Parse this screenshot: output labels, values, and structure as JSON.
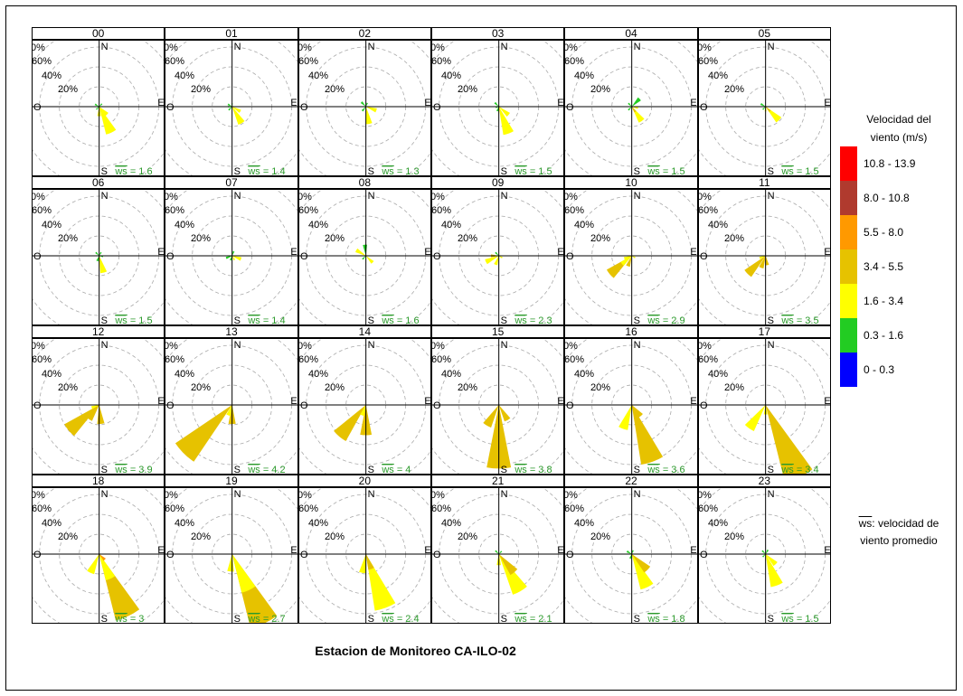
{
  "title": "Estacion de Monitoreo CA-ILO-02",
  "legend": {
    "title_line1": "Velocidad del",
    "title_line2": "viento (m/s)",
    "items": [
      {
        "label": "10.8 - 13.9",
        "color": "#ff0000"
      },
      {
        "label": "8.0 - 10.8",
        "color": "#b03a2e"
      },
      {
        "label": "5.5 - 8.0",
        "color": "#ff9900"
      },
      {
        "label": "3.4 - 5.5",
        "color": "#e6c200"
      },
      {
        "label": "1.6 - 3.4",
        "color": "#ffff00"
      },
      {
        "label": "0.3 - 1.6",
        "color": "#22cc22"
      },
      {
        "label": "0 - 0.3",
        "color": "#0000ff"
      }
    ],
    "ws_note_symbol": "ws",
    "ws_note_line1": ": velocidad de",
    "ws_note_line2": "viento promedio"
  },
  "chart_data": {
    "type": "wind-rose-grid",
    "title": "Estacion de Monitoreo CA-ILO-02",
    "radial_ticks": [
      "20%",
      "40%",
      "60%",
      "80%"
    ],
    "compass_labels": {
      "N": "N",
      "S": "S",
      "E": "E",
      "O": "O"
    },
    "ws_label": "ws",
    "panels": [
      {
        "hour": "00",
        "ws": "1.6",
        "petals": [
          {
            "dir": 155,
            "len": 0.36,
            "c": "#ffff00"
          },
          {
            "dir": 135,
            "len": 0.14,
            "c": "#ffff00"
          },
          {
            "dir": 180,
            "len": 0.12,
            "c": "#ffff00"
          },
          {
            "dir": 300,
            "len": 0.06,
            "c": "#22cc22"
          },
          {
            "dir": 45,
            "len": 0.05,
            "c": "#22cc22"
          },
          {
            "dir": 225,
            "len": 0.05,
            "c": "#22cc22"
          },
          {
            "dir": 90,
            "len": 0.04,
            "c": "#22cc22"
          }
        ]
      },
      {
        "hour": "01",
        "ws": "1.4",
        "petals": [
          {
            "dir": 150,
            "len": 0.24,
            "c": "#ffff00"
          },
          {
            "dir": 120,
            "len": 0.12,
            "c": "#ffff00"
          },
          {
            "dir": 300,
            "len": 0.06,
            "c": "#22cc22"
          },
          {
            "dir": 225,
            "len": 0.06,
            "c": "#22cc22"
          },
          {
            "dir": 0,
            "len": 0.04,
            "c": "#22cc22"
          },
          {
            "dir": 270,
            "len": 0.05,
            "c": "#22cc22"
          }
        ]
      },
      {
        "hour": "02",
        "ws": "1.3",
        "petals": [
          {
            "dir": 170,
            "len": 0.22,
            "c": "#ffff00"
          },
          {
            "dir": 110,
            "len": 0.14,
            "c": "#ffff00"
          },
          {
            "dir": 315,
            "len": 0.08,
            "c": "#22cc22"
          },
          {
            "dir": 220,
            "len": 0.07,
            "c": "#22cc22"
          },
          {
            "dir": 20,
            "len": 0.05,
            "c": "#22cc22"
          }
        ]
      },
      {
        "hour": "03",
        "ws": "1.5",
        "petals": [
          {
            "dir": 160,
            "len": 0.36,
            "c": "#ffff00"
          },
          {
            "dir": 130,
            "len": 0.16,
            "c": "#ffff00"
          },
          {
            "dir": 315,
            "len": 0.07,
            "c": "#22cc22"
          },
          {
            "dir": 200,
            "len": 0.06,
            "c": "#22cc22"
          },
          {
            "dir": 250,
            "len": 0.04,
            "c": "#22cc22"
          }
        ]
      },
      {
        "hour": "04",
        "ws": "1.5",
        "petals": [
          {
            "dir": 145,
            "len": 0.22,
            "c": "#ffff00"
          },
          {
            "dir": 145,
            "len": 0.08,
            "c": "#e6c200"
          },
          {
            "dir": 45,
            "len": 0.14,
            "c": "#22cc22"
          },
          {
            "dir": 315,
            "len": 0.06,
            "c": "#22cc22"
          },
          {
            "dir": 225,
            "len": 0.06,
            "c": "#22cc22"
          },
          {
            "dir": 100,
            "len": 0.08,
            "c": "#ffff00"
          }
        ]
      },
      {
        "hour": "05",
        "ws": "1.5",
        "petals": [
          {
            "dir": 135,
            "len": 0.24,
            "c": "#ffff00"
          },
          {
            "dir": 135,
            "len": 0.08,
            "c": "#e6c200"
          },
          {
            "dir": 300,
            "len": 0.07,
            "c": "#22cc22"
          },
          {
            "dir": 225,
            "len": 0.05,
            "c": "#22cc22"
          },
          {
            "dir": 180,
            "len": 0.06,
            "c": "#ffff00"
          }
        ]
      },
      {
        "hour": "06",
        "ws": "1.5",
        "petals": [
          {
            "dir": 165,
            "len": 0.22,
            "c": "#ffff00"
          },
          {
            "dir": 315,
            "len": 0.06,
            "c": "#22cc22"
          },
          {
            "dir": 200,
            "len": 0.07,
            "c": "#22cc22"
          },
          {
            "dir": 30,
            "len": 0.05,
            "c": "#22cc22"
          },
          {
            "dir": 100,
            "len": 0.05,
            "c": "#22cc22"
          }
        ]
      },
      {
        "hour": "07",
        "ws": "1.4",
        "petals": [
          {
            "dir": 110,
            "len": 0.12,
            "c": "#ffff00"
          },
          {
            "dir": 250,
            "len": 0.08,
            "c": "#22cc22"
          },
          {
            "dir": 200,
            "len": 0.06,
            "c": "#22cc22"
          },
          {
            "dir": 20,
            "len": 0.06,
            "c": "#22cc22"
          },
          {
            "dir": 150,
            "len": 0.06,
            "c": "#ffff00"
          }
        ]
      },
      {
        "hour": "08",
        "ws": "1.6",
        "petals": [
          {
            "dir": 300,
            "len": 0.14,
            "c": "#ffff00"
          },
          {
            "dir": 135,
            "len": 0.12,
            "c": "#ffff00"
          },
          {
            "dir": 355,
            "len": 0.14,
            "c": "#22cc22"
          },
          {
            "dir": 225,
            "len": 0.06,
            "c": "#22cc22"
          }
        ]
      },
      {
        "hour": "09",
        "ws": "2.3",
        "petals": [
          {
            "dir": 245,
            "len": 0.18,
            "c": "#ffff00"
          },
          {
            "dir": 200,
            "len": 0.12,
            "c": "#ffff00"
          },
          {
            "dir": 270,
            "len": 0.1,
            "c": "#e6c200"
          },
          {
            "dir": 315,
            "len": 0.06,
            "c": "#22cc22"
          },
          {
            "dir": 120,
            "len": 0.05,
            "c": "#ffff00"
          }
        ]
      },
      {
        "hour": "10",
        "ws": "2.9",
        "petals": [
          {
            "dir": 230,
            "len": 0.36,
            "c": "#e6c200"
          },
          {
            "dir": 230,
            "len": 0.16,
            "c": "#ffff00"
          },
          {
            "dir": 200,
            "len": 0.14,
            "c": "#e6c200"
          },
          {
            "dir": 250,
            "len": 0.1,
            "c": "#ffff00"
          },
          {
            "dir": 120,
            "len": 0.05,
            "c": "#ffff00"
          }
        ]
      },
      {
        "hour": "11",
        "ws": "3.5",
        "petals": [
          {
            "dir": 225,
            "len": 0.32,
            "c": "#e6c200"
          },
          {
            "dir": 200,
            "len": 0.16,
            "c": "#e6c200"
          },
          {
            "dir": 170,
            "len": 0.12,
            "c": "#e6c200"
          },
          {
            "dir": 250,
            "len": 0.08,
            "c": "#ffff00"
          }
        ]
      },
      {
        "hour": "12",
        "ws": "3.9",
        "petals": [
          {
            "dir": 230,
            "len": 0.5,
            "c": "#e6c200"
          },
          {
            "dir": 215,
            "len": 0.22,
            "c": "#e6c200"
          },
          {
            "dir": 175,
            "len": 0.24,
            "c": "#e6c200"
          },
          {
            "dir": 250,
            "len": 0.1,
            "c": "#ffff00"
          }
        ]
      },
      {
        "hour": "13",
        "ws": "4.2",
        "petals": [
          {
            "dir": 225,
            "len": 0.86,
            "c": "#e6c200"
          },
          {
            "dir": 180,
            "len": 0.24,
            "c": "#e6c200"
          },
          {
            "dir": 200,
            "len": 0.14,
            "c": "#ffff00"
          }
        ]
      },
      {
        "hour": "14",
        "ws": "4",
        "petals": [
          {
            "dir": 220,
            "len": 0.52,
            "c": "#e6c200"
          },
          {
            "dir": 180,
            "len": 0.38,
            "c": "#e6c200"
          },
          {
            "dir": 200,
            "len": 0.14,
            "c": "#ffff00"
          }
        ]
      },
      {
        "hour": "15",
        "ws": "3.8",
        "petals": [
          {
            "dir": 180,
            "len": 0.8,
            "c": "#e6c200"
          },
          {
            "dir": 210,
            "len": 0.3,
            "c": "#e6c200"
          },
          {
            "dir": 150,
            "len": 0.22,
            "c": "#e6c200"
          }
        ]
      },
      {
        "hour": "16",
        "ws": "3.6",
        "petals": [
          {
            "dir": 160,
            "len": 0.76,
            "c": "#e6c200"
          },
          {
            "dir": 200,
            "len": 0.32,
            "c": "#ffff00"
          },
          {
            "dir": 140,
            "len": 0.18,
            "c": "#e6c200"
          }
        ]
      },
      {
        "hour": "17",
        "ws": "3.4",
        "petals": [
          {
            "dir": 155,
            "len": 1.0,
            "c": "#e6c200"
          },
          {
            "dir": 215,
            "len": 0.36,
            "c": "#ffff00"
          },
          {
            "dir": 180,
            "len": 0.12,
            "c": "#ffff00"
          }
        ]
      },
      {
        "hour": "18",
        "ws": "3",
        "petals": [
          {
            "dir": 155,
            "len": 0.86,
            "c": "#e6c200"
          },
          {
            "dir": 155,
            "len": 0.34,
            "c": "#ffff00"
          },
          {
            "dir": 205,
            "len": 0.26,
            "c": "#ffff00"
          },
          {
            "dir": 135,
            "len": 0.1,
            "c": "#ff9900"
          }
        ]
      },
      {
        "hour": "19",
        "ws": "2.7",
        "petals": [
          {
            "dir": 155,
            "len": 0.96,
            "c": "#e6c200"
          },
          {
            "dir": 155,
            "len": 0.5,
            "c": "#ffff00"
          },
          {
            "dir": 185,
            "len": 0.22,
            "c": "#ffff00"
          }
        ]
      },
      {
        "hour": "20",
        "ws": "2.4",
        "petals": [
          {
            "dir": 160,
            "len": 0.72,
            "c": "#ffff00"
          },
          {
            "dir": 160,
            "len": 0.2,
            "c": "#e6c200"
          },
          {
            "dir": 190,
            "len": 0.24,
            "c": "#ffff00"
          }
        ]
      },
      {
        "hour": "21",
        "ws": "2.1",
        "petals": [
          {
            "dir": 150,
            "len": 0.54,
            "c": "#ffff00"
          },
          {
            "dir": 140,
            "len": 0.3,
            "c": "#e6c200"
          },
          {
            "dir": 180,
            "len": 0.14,
            "c": "#ffff00"
          },
          {
            "dir": 315,
            "len": 0.06,
            "c": "#22cc22"
          },
          {
            "dir": 45,
            "len": 0.05,
            "c": "#22cc22"
          }
        ]
      },
      {
        "hour": "22",
        "ws": "1.8",
        "petals": [
          {
            "dir": 155,
            "len": 0.46,
            "c": "#ffff00"
          },
          {
            "dir": 135,
            "len": 0.28,
            "c": "#e6c200"
          },
          {
            "dir": 300,
            "len": 0.07,
            "c": "#22cc22"
          },
          {
            "dir": 20,
            "len": 0.05,
            "c": "#22cc22"
          },
          {
            "dir": 200,
            "len": 0.06,
            "c": "#22cc22"
          }
        ]
      },
      {
        "hour": "23",
        "ws": "1.5",
        "petals": [
          {
            "dir": 160,
            "len": 0.42,
            "c": "#ffff00"
          },
          {
            "dir": 135,
            "len": 0.18,
            "c": "#ffff00"
          },
          {
            "dir": 315,
            "len": 0.06,
            "c": "#22cc22"
          },
          {
            "dir": 30,
            "len": 0.06,
            "c": "#22cc22"
          },
          {
            "dir": 225,
            "len": 0.05,
            "c": "#22cc22"
          }
        ]
      }
    ]
  }
}
